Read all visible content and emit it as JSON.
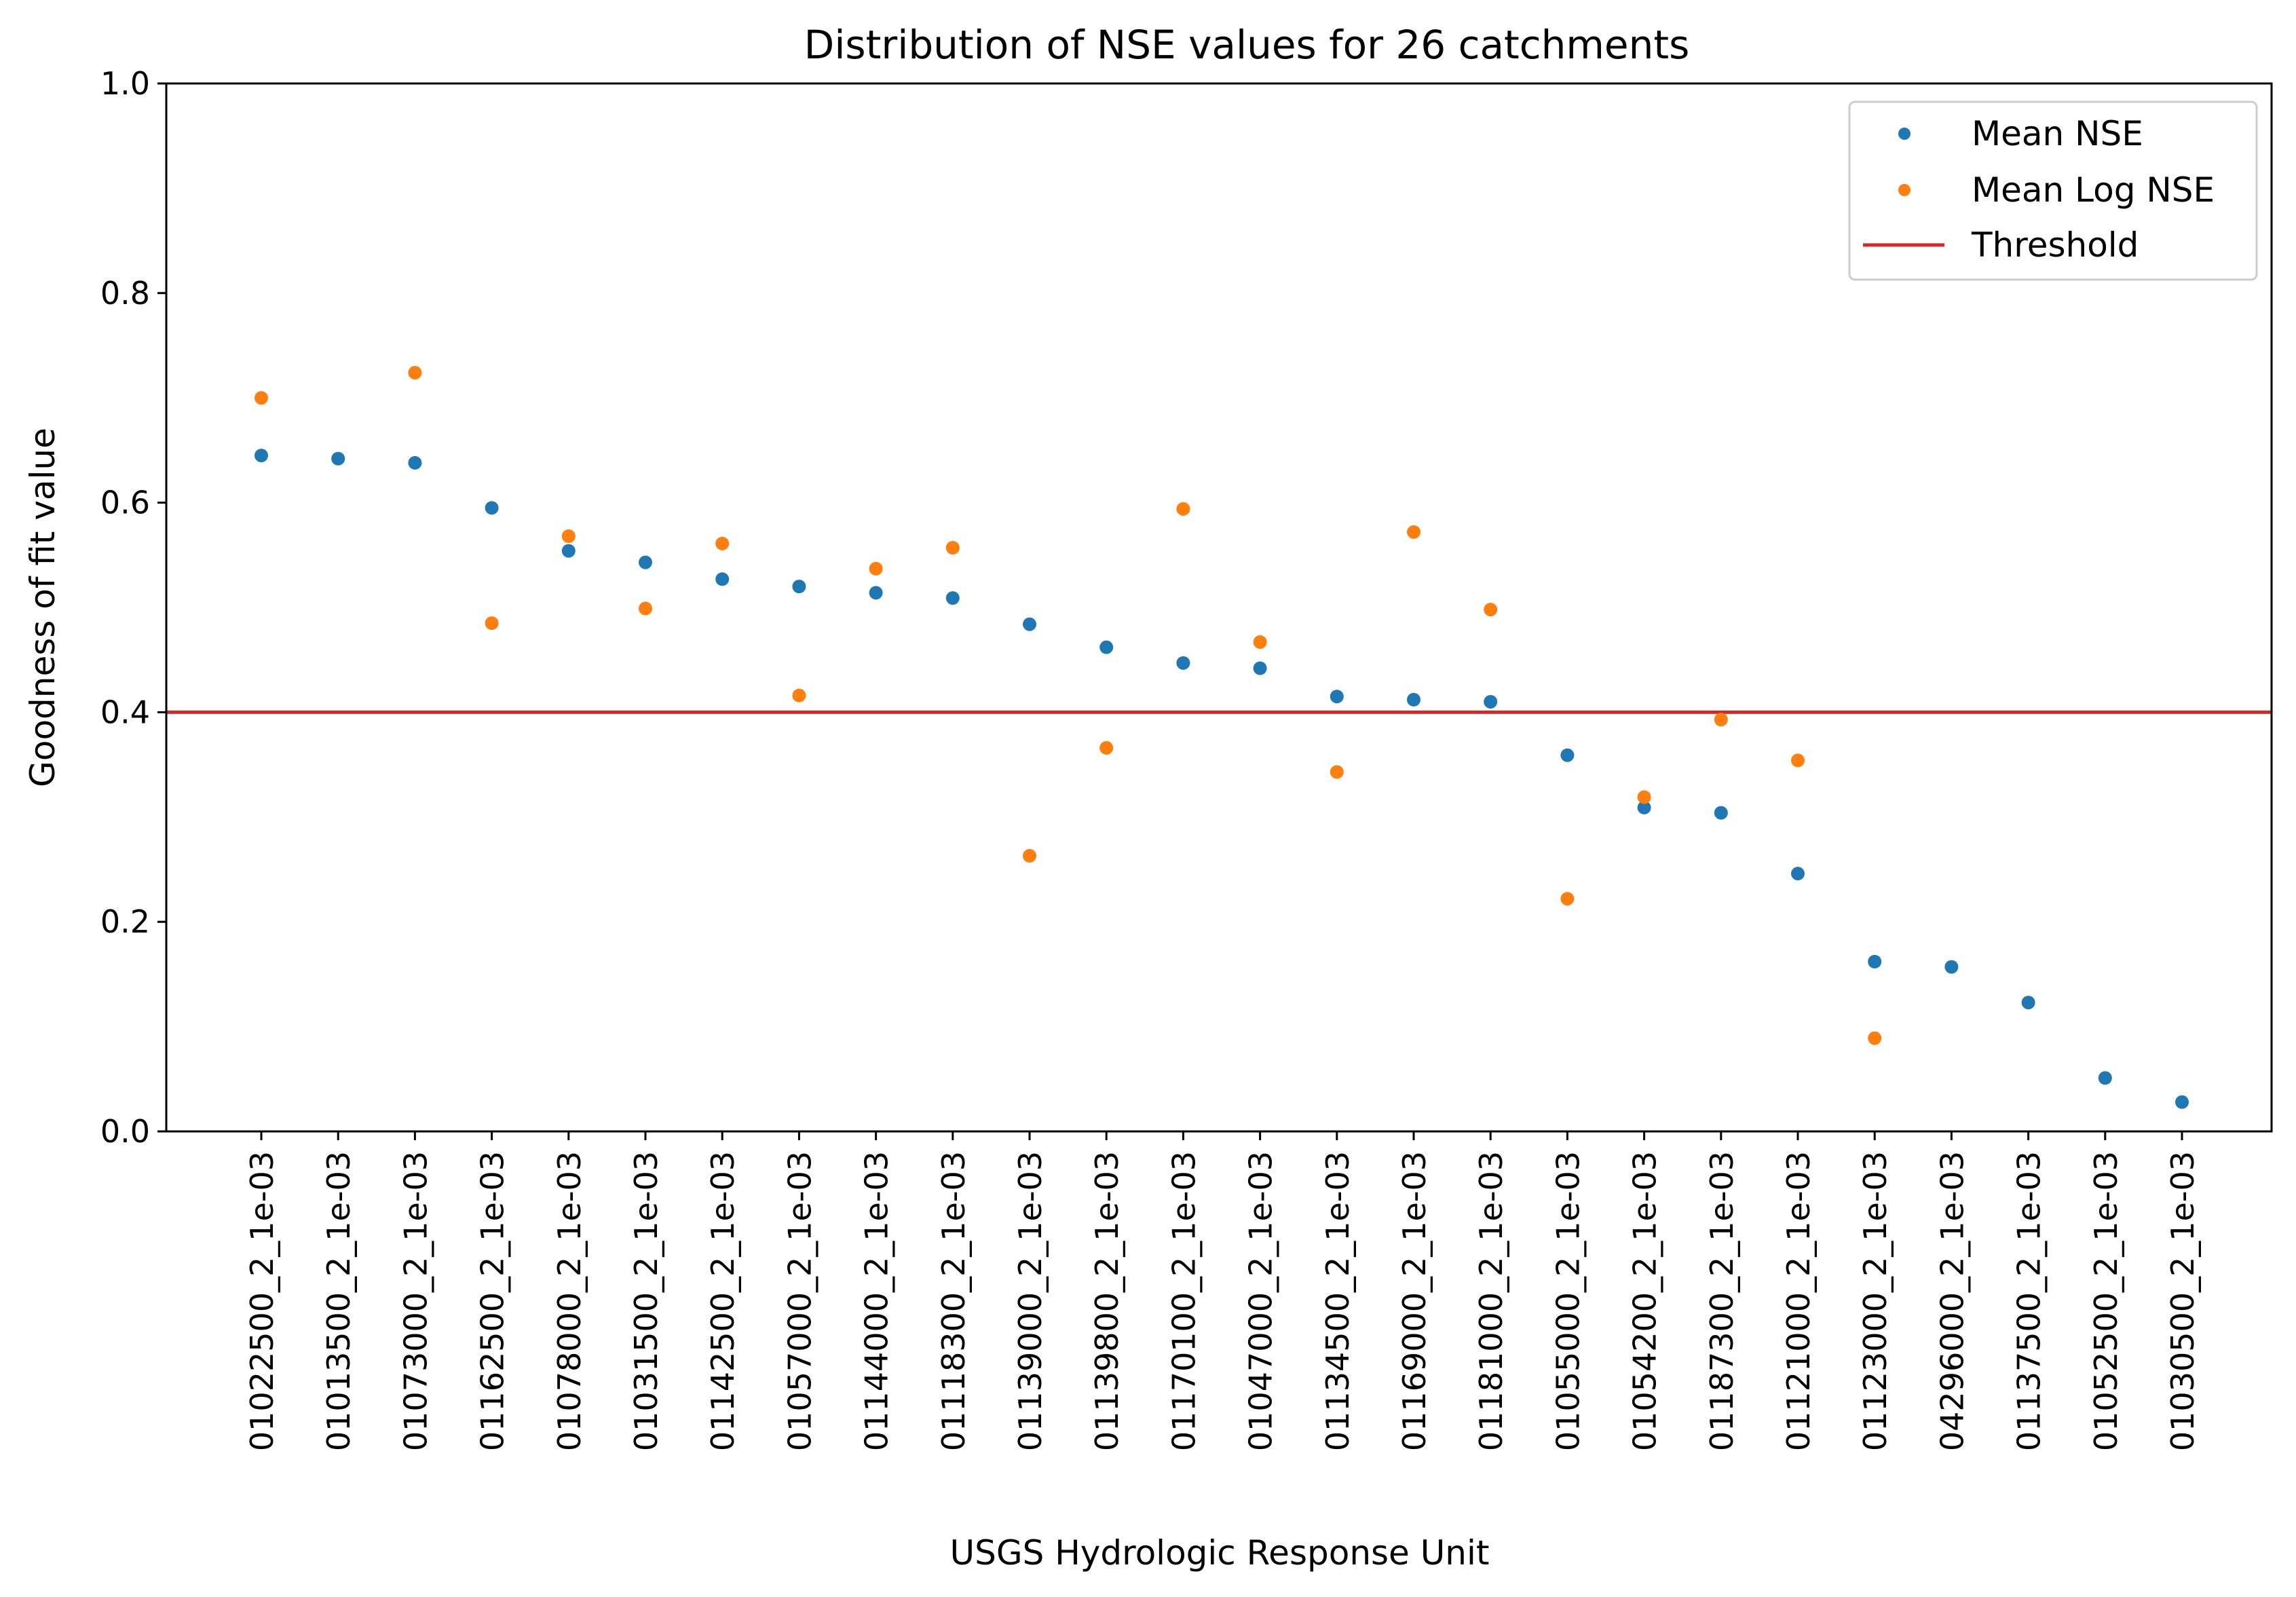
{
  "chart_data": {
    "type": "scatter",
    "title": "Distribution of NSE values for 26 catchments",
    "xlabel": "USGS Hydrologic Response Unit",
    "ylabel": "Goodness of fit value",
    "ylim": [
      0.0,
      1.0
    ],
    "yticks": [
      "0.0",
      "0.2",
      "0.4",
      "0.6",
      "0.8",
      "1.0"
    ],
    "grid": false,
    "legend_position": "top-right",
    "categories": [
      "01022500_2_1e-03",
      "01013500_2_1e-03",
      "01073000_2_1e-03",
      "01162500_2_1e-03",
      "01078000_2_1e-03",
      "01031500_2_1e-03",
      "01142500_2_1e-03",
      "01057000_2_1e-03",
      "01144000_2_1e-03",
      "01118300_2_1e-03",
      "01139000_2_1e-03",
      "01139800_2_1e-03",
      "01170100_2_1e-03",
      "01047000_2_1e-03",
      "01134500_2_1e-03",
      "01169000_2_1e-03",
      "01181000_2_1e-03",
      "01055000_2_1e-03",
      "01054200_2_1e-03",
      "01187300_2_1e-03",
      "01121000_2_1e-03",
      "01123000_2_1e-03",
      "04296000_2_1e-03",
      "01137500_2_1e-03",
      "01052500_2_1e-03",
      "01030500_2_1e-03"
    ],
    "series": [
      {
        "name": "Mean NSE",
        "color": "#1f77b4",
        "values": [
          0.645,
          0.642,
          0.638,
          0.595,
          0.554,
          0.543,
          0.527,
          0.52,
          0.514,
          0.509,
          0.484,
          0.462,
          0.447,
          0.442,
          0.415,
          0.412,
          0.41,
          0.359,
          0.309,
          0.304,
          0.246,
          0.162,
          0.157,
          0.123,
          0.051,
          0.028
        ]
      },
      {
        "name": "Mean Log NSE",
        "color": "#ff7f0e",
        "values": [
          0.7,
          null,
          0.724,
          0.485,
          0.568,
          0.499,
          0.561,
          0.416,
          0.537,
          0.557,
          0.263,
          0.366,
          0.594,
          0.467,
          0.343,
          0.572,
          0.498,
          0.222,
          0.319,
          0.393,
          0.354,
          0.089,
          null,
          null,
          null,
          null
        ]
      }
    ],
    "threshold": {
      "name": "Threshold",
      "value": 0.4,
      "color": "#d62728"
    }
  }
}
